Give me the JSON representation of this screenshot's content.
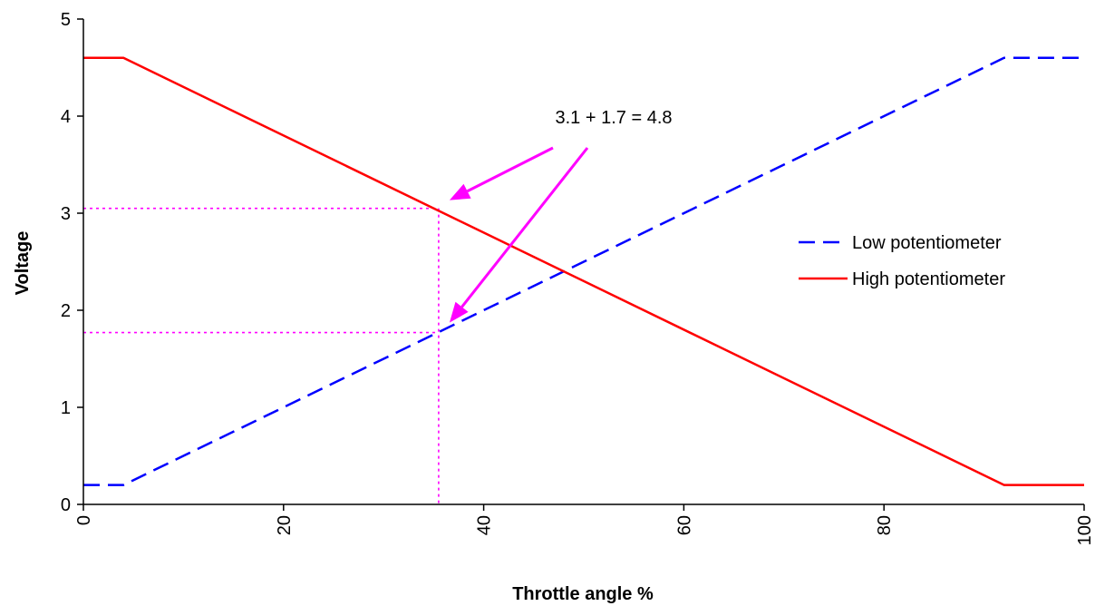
{
  "chart_data": {
    "type": "line",
    "xlabel": "Throttle angle %",
    "ylabel": "Voltage",
    "xlim": [
      0,
      100
    ],
    "ylim": [
      0,
      5
    ],
    "x_ticks": [
      "0",
      "20",
      "40",
      "60",
      "80",
      "100"
    ],
    "y_ticks": [
      "0",
      "1",
      "2",
      "3",
      "4",
      "5"
    ],
    "grid": false,
    "legend_position": "right",
    "series": [
      {
        "name": "Low potentiometer",
        "color": "#0000ff",
        "line_style": "dashed",
        "x": [
          0,
          4,
          92,
          100
        ],
        "y": [
          0.2,
          0.2,
          4.6,
          4.6
        ]
      },
      {
        "name": "High potentiometer",
        "color": "#ff0000",
        "line_style": "solid",
        "x": [
          0,
          4,
          92,
          100
        ],
        "y": [
          4.6,
          4.6,
          0.2,
          0.2
        ]
      }
    ],
    "annotations": {
      "text": "3.1 + 1.7 = 4.8",
      "color": "#ff00ff",
      "reference_x": 35.5,
      "reference_y": [
        3.05,
        1.77
      ]
    }
  }
}
